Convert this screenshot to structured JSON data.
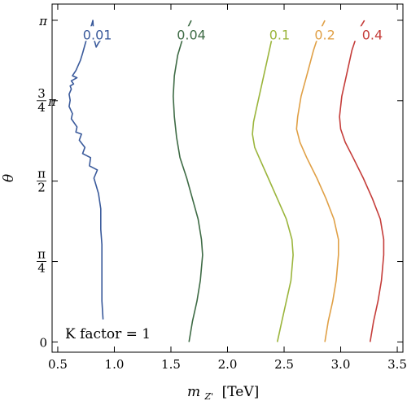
{
  "chart_data": {
    "type": "line",
    "title": "",
    "xlabel": "m",
    "xlabel_sub": "Z'",
    "xlabel_unit": "[TeV]",
    "ylabel": "θ",
    "xlim": [
      0.45,
      3.55
    ],
    "ylim": [
      -0.1,
      3.3
    ],
    "grid": false,
    "x_ticks": [
      {
        "value": 0.5,
        "label": "0.5"
      },
      {
        "value": 1.0,
        "label": "1.0"
      },
      {
        "value": 1.5,
        "label": "1.5"
      },
      {
        "value": 2.0,
        "label": "2.0"
      },
      {
        "value": 2.5,
        "label": "2.5"
      },
      {
        "value": 3.0,
        "label": "3.0"
      },
      {
        "value": 3.5,
        "label": "3.5"
      }
    ],
    "y_ticks": [
      {
        "value": 0,
        "label": "0",
        "num": "",
        "den": "",
        "suffix": ""
      },
      {
        "value": 0.7854,
        "label": "",
        "num": "π",
        "den": "4",
        "suffix": ""
      },
      {
        "value": 1.5708,
        "label": "",
        "num": "π",
        "den": "2",
        "suffix": ""
      },
      {
        "value": 2.3562,
        "label": "",
        "num": "3",
        "den": "4",
        "suffix": "π"
      },
      {
        "value": 3.1416,
        "label": "π",
        "num": "",
        "den": "",
        "suffix": ""
      }
    ],
    "annotation": "K factor = 1",
    "series": [
      {
        "name": "0.01",
        "color": "#3a5a9b",
        "label_pos": [
          0.85,
          2.98
        ],
        "x": [
          0.9,
          0.89,
          0.89,
          0.89,
          0.89,
          0.88,
          0.88,
          0.86,
          0.82,
          0.85,
          0.78,
          0.79,
          0.72,
          0.74,
          0.69,
          0.71,
          0.66,
          0.67,
          0.62,
          0.63,
          0.6,
          0.61,
          0.6,
          0.62,
          0.61,
          0.64,
          0.62,
          0.67,
          0.63,
          0.66,
          0.7,
          0.72,
          0.74,
          0.76,
          0.78,
          0.8,
          0.81,
          0.82,
          0.84,
          0.86,
          0.88,
          0.9,
          0.91
        ],
        "y": [
          0.22,
          0.4,
          0.6,
          0.78,
          0.95,
          1.1,
          1.3,
          1.45,
          1.6,
          1.68,
          1.72,
          1.8,
          1.84,
          1.9,
          1.97,
          2.03,
          2.05,
          2.1,
          2.18,
          2.23,
          2.3,
          2.36,
          2.42,
          2.47,
          2.5,
          2.52,
          2.55,
          2.58,
          2.6,
          2.65,
          2.75,
          2.82,
          2.9,
          2.98,
          3.04,
          3.1,
          3.14,
          2.96,
          2.88,
          2.92,
          2.95,
          3.0,
          3.03
        ]
      },
      {
        "name": "0.04",
        "color": "#3e6b45",
        "label_pos": [
          1.68,
          2.98
        ],
        "x": [
          1.66,
          1.69,
          1.73,
          1.76,
          1.78,
          1.77,
          1.74,
          1.69,
          1.64,
          1.58,
          1.55,
          1.53,
          1.52,
          1.53,
          1.56,
          1.6,
          1.64,
          1.68
        ],
        "y": [
          0.0,
          0.2,
          0.4,
          0.6,
          0.85,
          1.0,
          1.2,
          1.4,
          1.6,
          1.8,
          2.0,
          2.2,
          2.4,
          2.6,
          2.8,
          2.95,
          3.05,
          3.14
        ]
      },
      {
        "name": "0.1",
        "color": "#9bb53c",
        "label_pos": [
          2.46,
          2.98
        ],
        "x": [
          2.44,
          2.48,
          2.52,
          2.56,
          2.58,
          2.57,
          2.52,
          2.44,
          2.36,
          2.28,
          2.24,
          2.22,
          2.23,
          2.26,
          2.3,
          2.35,
          2.4
        ],
        "y": [
          0.0,
          0.2,
          0.4,
          0.6,
          0.85,
          1.0,
          1.2,
          1.4,
          1.6,
          1.8,
          1.9,
          2.03,
          2.15,
          2.3,
          2.5,
          2.75,
          3.0
        ]
      },
      {
        "name": "0.2",
        "color": "#e0a046",
        "label_pos": [
          2.86,
          2.98
        ],
        "x": [
          2.86,
          2.89,
          2.93,
          2.96,
          2.98,
          2.98,
          2.94,
          2.87,
          2.79,
          2.7,
          2.64,
          2.61,
          2.62,
          2.65,
          2.7,
          2.76,
          2.82,
          2.86
        ],
        "y": [
          0.0,
          0.2,
          0.4,
          0.6,
          0.85,
          1.0,
          1.2,
          1.4,
          1.6,
          1.8,
          1.95,
          2.08,
          2.2,
          2.4,
          2.6,
          2.85,
          3.05,
          3.14
        ]
      },
      {
        "name": "0.4",
        "color": "#c53d3a",
        "label_pos": [
          3.28,
          2.98
        ],
        "x": [
          3.26,
          3.29,
          3.33,
          3.36,
          3.38,
          3.38,
          3.35,
          3.28,
          3.2,
          3.11,
          3.04,
          3.0,
          2.99,
          3.01,
          3.05,
          3.1,
          3.16,
          3.21
        ],
        "y": [
          0.0,
          0.2,
          0.4,
          0.6,
          0.85,
          1.0,
          1.2,
          1.4,
          1.6,
          1.8,
          1.95,
          2.08,
          2.2,
          2.4,
          2.6,
          2.85,
          3.05,
          3.14
        ]
      }
    ]
  }
}
